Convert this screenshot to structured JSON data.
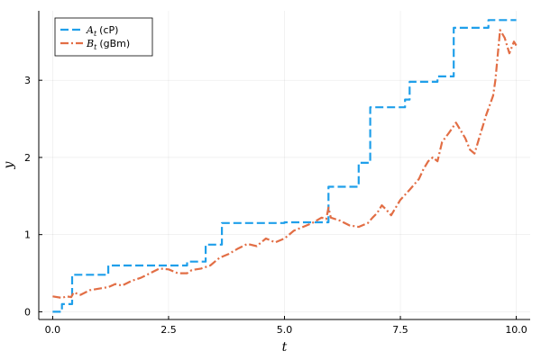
{
  "chart_data": {
    "type": "line",
    "xlabel": "t",
    "ylabel": "y",
    "xlim": [
      -0.3,
      10.3
    ],
    "ylim": [
      -0.1,
      3.9
    ],
    "x_ticks": [
      0,
      2.5,
      5,
      7.5,
      10
    ],
    "x_tick_labels": [
      "0.0",
      "2.5",
      "5.0",
      "7.5",
      "10.0"
    ],
    "y_ticks": [
      0,
      1,
      2,
      3
    ],
    "y_tick_labels": [
      "0",
      "1",
      "2",
      "3"
    ],
    "grid": true,
    "legend_position": "top-left",
    "series": [
      {
        "name_var": "A",
        "name_sub": "t",
        "name_unit": "(cP)",
        "color": "#1f9fea",
        "style": "dashed-step",
        "points": [
          [
            0.0,
            0.0
          ],
          [
            0.2,
            0.0
          ],
          [
            0.2,
            0.1
          ],
          [
            0.42,
            0.1
          ],
          [
            0.42,
            0.48
          ],
          [
            1.2,
            0.48
          ],
          [
            1.2,
            0.6
          ],
          [
            2.9,
            0.6
          ],
          [
            2.9,
            0.65
          ],
          [
            3.3,
            0.65
          ],
          [
            3.3,
            0.87
          ],
          [
            3.65,
            0.87
          ],
          [
            3.65,
            1.15
          ],
          [
            5.0,
            1.15
          ],
          [
            5.0,
            1.16
          ],
          [
            5.95,
            1.16
          ],
          [
            5.95,
            1.62
          ],
          [
            6.6,
            1.62
          ],
          [
            6.6,
            1.93
          ],
          [
            6.85,
            1.93
          ],
          [
            6.85,
            2.65
          ],
          [
            7.6,
            2.65
          ],
          [
            7.6,
            2.75
          ],
          [
            7.7,
            2.75
          ],
          [
            7.7,
            2.98
          ],
          [
            8.3,
            2.98
          ],
          [
            8.3,
            3.05
          ],
          [
            8.65,
            3.05
          ],
          [
            8.65,
            3.68
          ],
          [
            9.4,
            3.68
          ],
          [
            9.4,
            3.78
          ],
          [
            10.0,
            3.78
          ]
        ]
      },
      {
        "name_var": "B",
        "name_sub": "t",
        "name_unit": "(gBm)",
        "color": "#e26e45",
        "style": "dash-dot",
        "points": [
          [
            0.0,
            0.2
          ],
          [
            0.2,
            0.18
          ],
          [
            0.3,
            0.2
          ],
          [
            0.4,
            0.19
          ],
          [
            0.45,
            0.25
          ],
          [
            0.6,
            0.22
          ],
          [
            0.8,
            0.28
          ],
          [
            1.0,
            0.3
          ],
          [
            1.2,
            0.32
          ],
          [
            1.35,
            0.36
          ],
          [
            1.5,
            0.34
          ],
          [
            1.7,
            0.4
          ],
          [
            1.9,
            0.44
          ],
          [
            2.1,
            0.5
          ],
          [
            2.3,
            0.56
          ],
          [
            2.5,
            0.55
          ],
          [
            2.7,
            0.5
          ],
          [
            2.9,
            0.5
          ],
          [
            3.0,
            0.54
          ],
          [
            3.2,
            0.56
          ],
          [
            3.4,
            0.6
          ],
          [
            3.6,
            0.7
          ],
          [
            3.8,
            0.75
          ],
          [
            4.0,
            0.82
          ],
          [
            4.2,
            0.88
          ],
          [
            4.4,
            0.85
          ],
          [
            4.6,
            0.95
          ],
          [
            4.8,
            0.9
          ],
          [
            5.0,
            0.95
          ],
          [
            5.2,
            1.05
          ],
          [
            5.4,
            1.1
          ],
          [
            5.6,
            1.15
          ],
          [
            5.8,
            1.22
          ],
          [
            5.9,
            1.2
          ],
          [
            5.95,
            1.35
          ],
          [
            6.0,
            1.22
          ],
          [
            6.2,
            1.18
          ],
          [
            6.4,
            1.12
          ],
          [
            6.6,
            1.1
          ],
          [
            6.8,
            1.15
          ],
          [
            6.9,
            1.22
          ],
          [
            7.0,
            1.28
          ],
          [
            7.1,
            1.38
          ],
          [
            7.2,
            1.32
          ],
          [
            7.3,
            1.25
          ],
          [
            7.5,
            1.45
          ],
          [
            7.7,
            1.58
          ],
          [
            7.9,
            1.72
          ],
          [
            8.0,
            1.85
          ],
          [
            8.1,
            1.95
          ],
          [
            8.2,
            2.0
          ],
          [
            8.3,
            1.95
          ],
          [
            8.4,
            2.2
          ],
          [
            8.55,
            2.32
          ],
          [
            8.7,
            2.45
          ],
          [
            8.8,
            2.35
          ],
          [
            8.9,
            2.25
          ],
          [
            9.0,
            2.1
          ],
          [
            9.1,
            2.05
          ],
          [
            9.2,
            2.25
          ],
          [
            9.35,
            2.55
          ],
          [
            9.5,
            2.8
          ],
          [
            9.55,
            3.0
          ],
          [
            9.65,
            3.65
          ],
          [
            9.75,
            3.55
          ],
          [
            9.85,
            3.35
          ],
          [
            9.95,
            3.5
          ],
          [
            10.0,
            3.45
          ]
        ]
      }
    ]
  }
}
